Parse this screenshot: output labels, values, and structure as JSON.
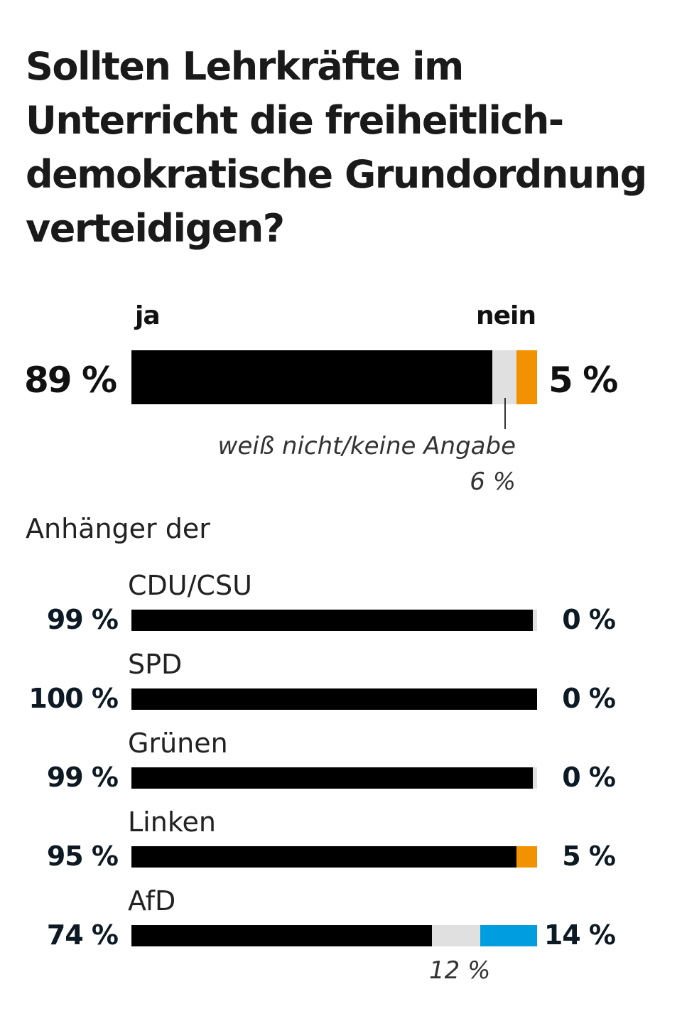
{
  "chart_data": {
    "type": "bar",
    "title": "Sollten Lehrkräfte im Unterricht die freiheitlich-demokratische Grundordnung verteidigen?",
    "colors": {
      "ja": "#000000",
      "unknown": "#e0e0e0",
      "nein": "#f39200",
      "nein_afd": "#009ee0"
    },
    "overall": {
      "ja_label": "ja",
      "nein_label": "nein",
      "ja": 89,
      "unknown": 6,
      "nein": 5,
      "ja_text": "89 %",
      "nein_text": "5 %",
      "unknown_label": "weiß nicht/keine Angabe",
      "unknown_text": "6 %"
    },
    "group_heading": "Anhänger der",
    "categories": [
      "CDU/CSU",
      "SPD",
      "Grünen",
      "Linken",
      "AfD"
    ],
    "series": [
      {
        "name": "ja",
        "values": [
          99,
          100,
          99,
          95,
          74
        ],
        "texts": [
          "99 %",
          "100 %",
          "99 %",
          "95 %",
          "74 %"
        ]
      },
      {
        "name": "weiß nicht/keine Angabe",
        "values": [
          1,
          0,
          1,
          0,
          12
        ],
        "texts": [
          "",
          "",
          "",
          "",
          "12 %"
        ]
      },
      {
        "name": "nein",
        "values": [
          0,
          0,
          0,
          5,
          14
        ],
        "texts": [
          "0 %",
          "0 %",
          "0 %",
          "5 %",
          "14 %"
        ]
      }
    ]
  }
}
